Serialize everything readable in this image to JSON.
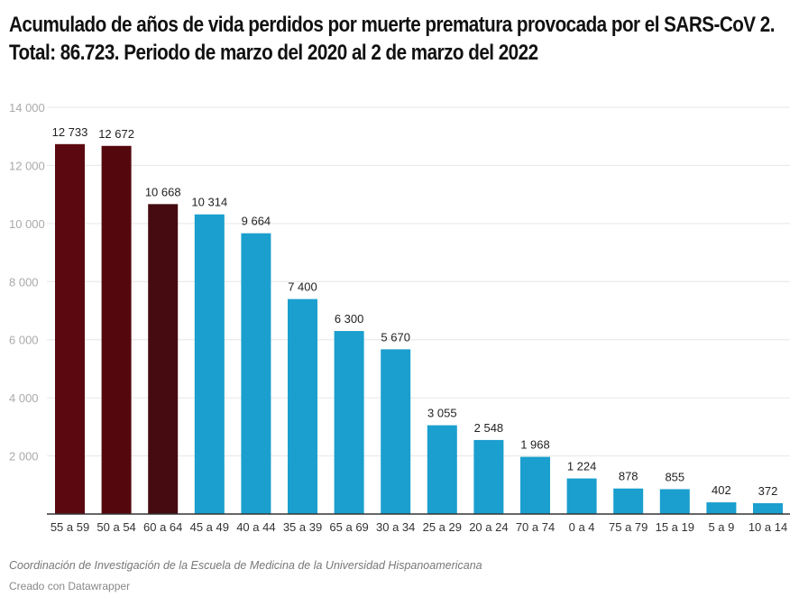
{
  "chart_data": {
    "type": "bar",
    "title": "Acumulado de años de vida perdidos por muerte prematura provocada por el SARS-CoV 2. Total: 86.723. Periodo de marzo del 2020 al 2 de marzo del 2022",
    "xlabel": "",
    "ylabel": "",
    "ylim": [
      0,
      14000
    ],
    "yticks": [
      2000,
      4000,
      6000,
      8000,
      10000,
      12000,
      14000
    ],
    "ytick_labels": [
      "2 000",
      "4 000",
      "6 000",
      "8 000",
      "10 000",
      "12 000",
      "14 000"
    ],
    "grid": true,
    "categories": [
      "55 a 59",
      "50 a 54",
      "60 a 64",
      "45 a 49",
      "40 a 44",
      "35 a 39",
      "65 a 69",
      "30 a 34",
      "25 a 29",
      "20 a 24",
      "70 a 74",
      "0 a 4",
      "75 a 79",
      "15 a 19",
      "5 a 9",
      "10 a 14"
    ],
    "values": [
      12733,
      12672,
      10668,
      10314,
      9664,
      7400,
      6300,
      5670,
      3055,
      2548,
      1968,
      1224,
      878,
      855,
      402,
      372
    ],
    "value_labels": [
      "12 733",
      "12 672",
      "10 668",
      "10 314",
      "9 664",
      "7 400",
      "6 300",
      "5 670",
      "3 055",
      "2 548",
      "1 968",
      "1 224",
      "878",
      "855",
      "402",
      "372"
    ],
    "bar_colors": [
      "#5c0810",
      "#54080e",
      "#450b10",
      "#1a9fce",
      "#1a9fce",
      "#1a9fce",
      "#1a9fce",
      "#1a9fce",
      "#1a9fce",
      "#1a9fce",
      "#1a9fce",
      "#1a9fce",
      "#1a9fce",
      "#1a9fce",
      "#1a9fce",
      "#1a9fce"
    ]
  },
  "footer": {
    "source": "Coordinación de Investigación de la Escuela de Medicina de la Universidad Hispanoamericana",
    "credit": "Creado con Datawrapper"
  }
}
